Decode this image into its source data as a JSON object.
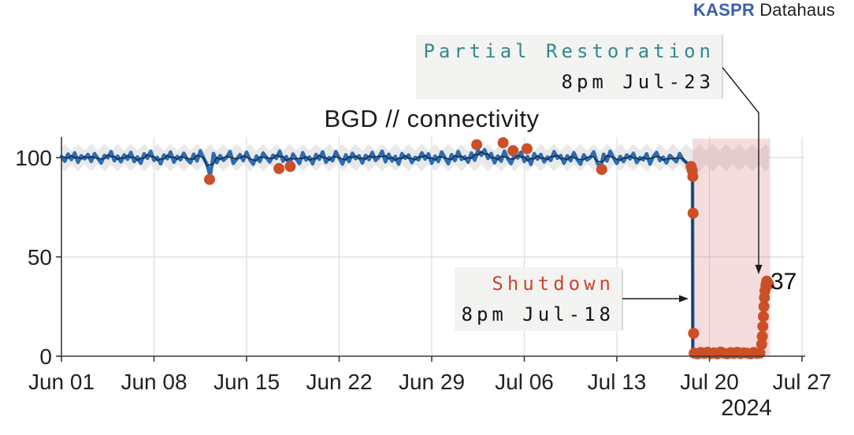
{
  "branding": {
    "brand_bold": "KASPR",
    "brand_regular": "Datahaus"
  },
  "colors": {
    "line_blue": "#2b6cb4",
    "line_core": "#13253f",
    "dot_orange": "#cc4f28",
    "ci_band_gray": "#e9e9e9",
    "outage_pink": "rgba(220,120,120,0.25)",
    "gridline": "#dcdcdc",
    "axis": "#3a3a3a",
    "teal_text": "#33898f",
    "red_text": "#d0452c",
    "kaspr_blue": "#3a5fae"
  },
  "chart_data": {
    "type": "line",
    "title": "BGD // connectivity",
    "x_tick_labels": [
      "Jun 01",
      "Jun 08",
      "Jun 15",
      "Jun 22",
      "Jun 29",
      "Jul 06",
      "Jul 13",
      "Jul 20",
      "Jul 27"
    ],
    "x_tick_days": [
      0,
      7,
      14,
      21,
      28,
      35,
      42,
      49,
      56
    ],
    "year_label": "2024",
    "y_ticks": [
      0,
      50,
      100
    ],
    "ylim": [
      0,
      110.5
    ],
    "xlim_days": [
      0,
      56.25
    ],
    "grid": true,
    "main_series": {
      "name": "connectivity",
      "start_day": 0,
      "step_days": 0.25,
      "values": [
        100.5,
        98.2,
        101.8,
        99.0,
        102.4,
        97.6,
        100.9,
        99.4,
        101.6,
        98.1,
        102.0,
        99.6,
        97.3,
        101.1,
        99.9,
        103.0,
        98.4,
        100.7,
        97.9,
        101.4,
        99.2,
        102.6,
        98.0,
        100.3,
        97.2,
        101.9,
        99.7,
        103.2,
        98.6,
        100.1,
        96.9,
        101.3,
        99.5,
        102.8,
        97.7,
        100.6,
        98.9,
        102.2,
        99.1,
        97.4,
        101.7,
        98.3,
        103.4,
        99.8,
        96.8,
        90.5,
        102.1,
        97.5,
        101.0,
        98.7,
        100.2,
        103.1,
        97.1,
        99.3,
        101.5,
        98.5,
        102.7,
        99.0,
        96.7,
        100.8,
        98.0,
        102.3,
        100.0,
        97.8,
        101.2,
        99.6,
        103.3,
        98.2,
        100.5,
        96.6,
        101.8,
        99.4,
        97.0,
        102.5,
        98.8,
        100.3,
        96.9,
        101.6,
        99.2,
        102.9,
        97.6,
        100.0,
        98.4,
        103.0,
        99.8,
        96.8,
        101.4,
        98.1,
        102.2,
        99.5,
        100.9,
        97.3,
        101.1,
        99.0,
        102.6,
        98.6,
        100.2,
        103.2,
        97.9,
        101.7,
        98.3,
        100.6,
        96.7,
        102.0,
        99.7,
        101.3,
        97.5,
        100.1,
        98.9,
        102.4,
        99.3,
        101.9,
        97.2,
        100.7,
        98.0,
        102.8,
        99.9,
        96.9,
        101.5,
        98.5,
        103.1,
        99.1,
        100.4,
        97.7,
        102.3,
        98.7,
        103.8,
        101.2,
        104.0,
        99.6,
        102.1,
        97.4,
        100.8,
        98.2,
        103.3,
        99.4,
        97.0,
        101.2,
        99.8,
        102.7,
        98.1,
        100.5,
        96.6,
        102.0,
        99.2,
        101.6,
        97.8,
        100.3,
        98.6,
        103.0,
        99.7,
        101.0,
        97.2,
        100.9,
        98.4,
        102.5,
        99.0,
        96.7,
        101.4,
        98.8,
        100.1,
        102.9,
        97.6,
        94.5,
        101.7,
        98.3,
        103.2,
        99.9,
        97.1,
        100.6,
        98.0,
        101.3,
        99.4,
        102.2,
        97.5,
        100.0,
        98.9,
        101.9,
        96.8,
        100.4,
        102.6,
        98.5,
        100.2,
        97.3,
        101.1,
        99.6,
        97.9,
        102.0,
        99.0,
        97.5,
        96.5
      ],
      "tail_points": [
        [
          47.6,
          96.0
        ],
        [
          47.68,
          95.0
        ],
        [
          47.72,
          94.0
        ],
        [
          47.74,
          1.6
        ],
        [
          48.0,
          1.3
        ],
        [
          48.3,
          1.8
        ],
        [
          48.6,
          1.2
        ],
        [
          48.9,
          1.9
        ],
        [
          49.2,
          1.4
        ],
        [
          49.5,
          1.7
        ],
        [
          49.8,
          1.2
        ],
        [
          50.1,
          1.8
        ],
        [
          50.4,
          1.3
        ],
        [
          50.7,
          1.6
        ],
        [
          51.0,
          1.2
        ],
        [
          51.3,
          1.9
        ],
        [
          51.6,
          1.4
        ],
        [
          51.9,
          1.7
        ],
        [
          52.2,
          1.3
        ],
        [
          52.5,
          1.8
        ],
        [
          52.8,
          1.5
        ],
        [
          52.95,
          2.5
        ],
        [
          53.0,
          8
        ],
        [
          53.05,
          15
        ],
        [
          53.1,
          22
        ],
        [
          53.15,
          28.5
        ],
        [
          53.2,
          33
        ],
        [
          53.28,
          36.5
        ],
        [
          53.35,
          38
        ],
        [
          53.42,
          37.2
        ],
        [
          53.5,
          36.5
        ]
      ]
    },
    "ci_band": {
      "center": 100,
      "half_width": 5.2,
      "wave_amplitude": 1.7,
      "wave_period_days": 1.0,
      "start_day": 0,
      "end_day": 53.55
    },
    "outage_region": {
      "start_day": 47.72,
      "end_day": 53.6
    },
    "scatter_outliers": [
      [
        11.2,
        89
      ],
      [
        16.45,
        94.5
      ],
      [
        17.3,
        95.5
      ],
      [
        31.4,
        106.5
      ],
      [
        33.4,
        107.5
      ],
      [
        34.15,
        103.5
      ],
      [
        35.2,
        104.5
      ],
      [
        40.85,
        94
      ],
      [
        47.62,
        95.5
      ],
      [
        47.7,
        93.5
      ],
      [
        47.74,
        90.5
      ],
      [
        47.76,
        72
      ],
      [
        47.8,
        11.5
      ],
      [
        47.85,
        1.5
      ],
      [
        48.1,
        1.2
      ],
      [
        48.35,
        1.9
      ],
      [
        48.6,
        1.4
      ],
      [
        48.85,
        2.0
      ],
      [
        49.1,
        1.3
      ],
      [
        49.35,
        1.7
      ],
      [
        49.6,
        1.2
      ],
      [
        49.85,
        2.1
      ],
      [
        50.1,
        1.5
      ],
      [
        50.35,
        1.2
      ],
      [
        50.6,
        1.8
      ],
      [
        50.85,
        1.4
      ],
      [
        51.1,
        2.0
      ],
      [
        51.35,
        1.3
      ],
      [
        51.6,
        1.7
      ],
      [
        51.85,
        1.5
      ],
      [
        52.1,
        1.2
      ],
      [
        52.35,
        1.9
      ],
      [
        52.6,
        1.4
      ],
      [
        52.82,
        1.6
      ],
      [
        52.95,
        6
      ],
      [
        53.0,
        10
      ],
      [
        53.04,
        15
      ],
      [
        53.08,
        20
      ],
      [
        53.12,
        25
      ],
      [
        53.16,
        29.5
      ],
      [
        53.2,
        33
      ],
      [
        53.27,
        35.8
      ],
      [
        53.33,
        37.8
      ],
      [
        53.4,
        37
      ],
      [
        53.48,
        36.2
      ]
    ],
    "events": {
      "shutdown": {
        "label": "Shutdown",
        "time": "8pm Jul-18",
        "day": 47.72
      },
      "restoration": {
        "label": "Partial Restoration",
        "time": "8pm Jul-23",
        "day": 53.0
      }
    },
    "point_label": {
      "text": "37",
      "day": 53.3,
      "value": 37
    }
  }
}
